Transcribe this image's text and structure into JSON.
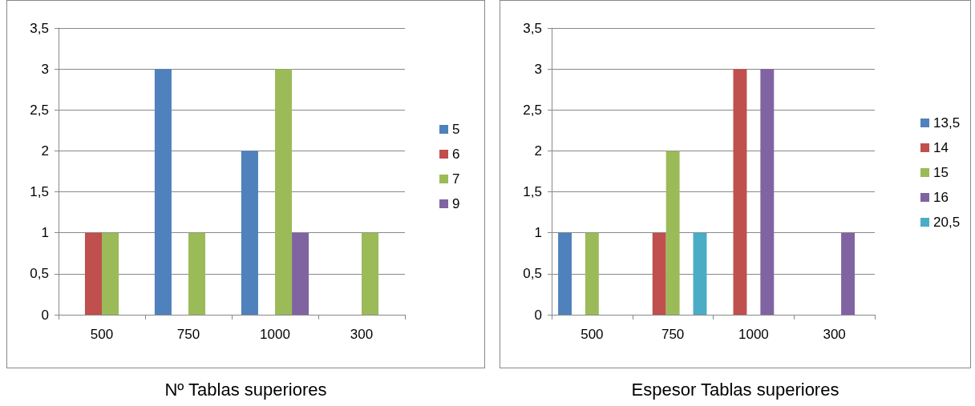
{
  "chart_data": [
    {
      "type": "bar",
      "title": "Nº Tablas superiores",
      "categories": [
        "500",
        "750",
        "1000",
        "300"
      ],
      "series": [
        {
          "name": "5",
          "color": "#4f81bd",
          "values": [
            null,
            3,
            2,
            null
          ]
        },
        {
          "name": "6",
          "color": "#c0504d",
          "values": [
            1,
            null,
            null,
            null
          ]
        },
        {
          "name": "7",
          "color": "#9bbb59",
          "values": [
            1,
            1,
            3,
            1
          ]
        },
        {
          "name": "9",
          "color": "#8064a2",
          "values": [
            null,
            null,
            1,
            null
          ]
        }
      ],
      "ylim": [
        0,
        3.5
      ],
      "yticks": [
        0,
        {
          "value": 0.5,
          "label": "0,5"
        },
        1,
        {
          "value": 1.5,
          "label": "1,5"
        },
        2,
        {
          "value": 2.5,
          "label": "2,5"
        },
        3,
        {
          "value": 3.5,
          "label": "3,5"
        }
      ],
      "grid": "y",
      "legend": "right"
    },
    {
      "type": "bar",
      "title": "Espesor Tablas superiores",
      "categories": [
        "500",
        "750",
        "1000",
        "300"
      ],
      "series": [
        {
          "name": "13,5",
          "color": "#4f81bd",
          "values": [
            1,
            null,
            null,
            null
          ]
        },
        {
          "name": "14",
          "color": "#c0504d",
          "values": [
            null,
            1,
            3,
            null
          ]
        },
        {
          "name": "15",
          "color": "#9bbb59",
          "values": [
            1,
            2,
            null,
            null
          ]
        },
        {
          "name": "16",
          "color": "#8064a2",
          "values": [
            null,
            null,
            3,
            1
          ]
        },
        {
          "name": "20,5",
          "color": "#4bacc6",
          "values": [
            null,
            1,
            null,
            null
          ]
        }
      ],
      "ylim": [
        0,
        3.5
      ],
      "yticks": [
        0,
        {
          "value": 0.5,
          "label": "0,5"
        },
        1,
        {
          "value": 1.5,
          "label": "1,5"
        },
        2,
        {
          "value": 2.5,
          "label": "2,5"
        },
        3,
        {
          "value": 3.5,
          "label": "3,5"
        }
      ],
      "grid": "y",
      "legend": "right"
    }
  ]
}
